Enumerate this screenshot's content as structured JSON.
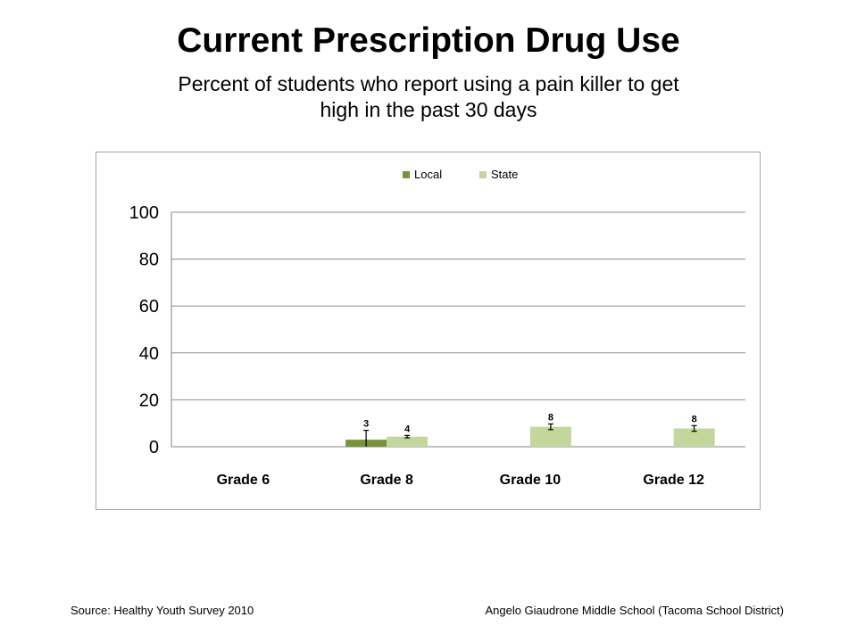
{
  "slide": {
    "title": "Current Prescription Drug Use",
    "subtitle": "Percent of students who report using a pain killer to get high in the past 30 days",
    "source": "Source: Healthy Youth Survey 2010",
    "school": "Angelo Giaudrone Middle School (Tacoma School District)"
  },
  "chart_data": {
    "type": "bar",
    "categories": [
      "Grade 6",
      "Grade 8",
      "Grade 10",
      "Grade 12"
    ],
    "series": [
      {
        "name": "Local",
        "color": "#77933c",
        "values": [
          null,
          3,
          null,
          null
        ],
        "labels": [
          "",
          "3",
          "",
          ""
        ],
        "error": [
          null,
          4,
          null,
          null
        ]
      },
      {
        "name": "State",
        "color": "#c3d69b",
        "values": [
          null,
          4.3,
          8.5,
          7.8
        ],
        "labels": [
          "",
          "4",
          "8",
          "8"
        ],
        "error": [
          null,
          0.5,
          1.2,
          1.2
        ]
      }
    ],
    "yticks": [
      0,
      20,
      40,
      60,
      80,
      100
    ],
    "ylim": [
      0,
      100
    ],
    "grid": true,
    "legend": "top"
  }
}
